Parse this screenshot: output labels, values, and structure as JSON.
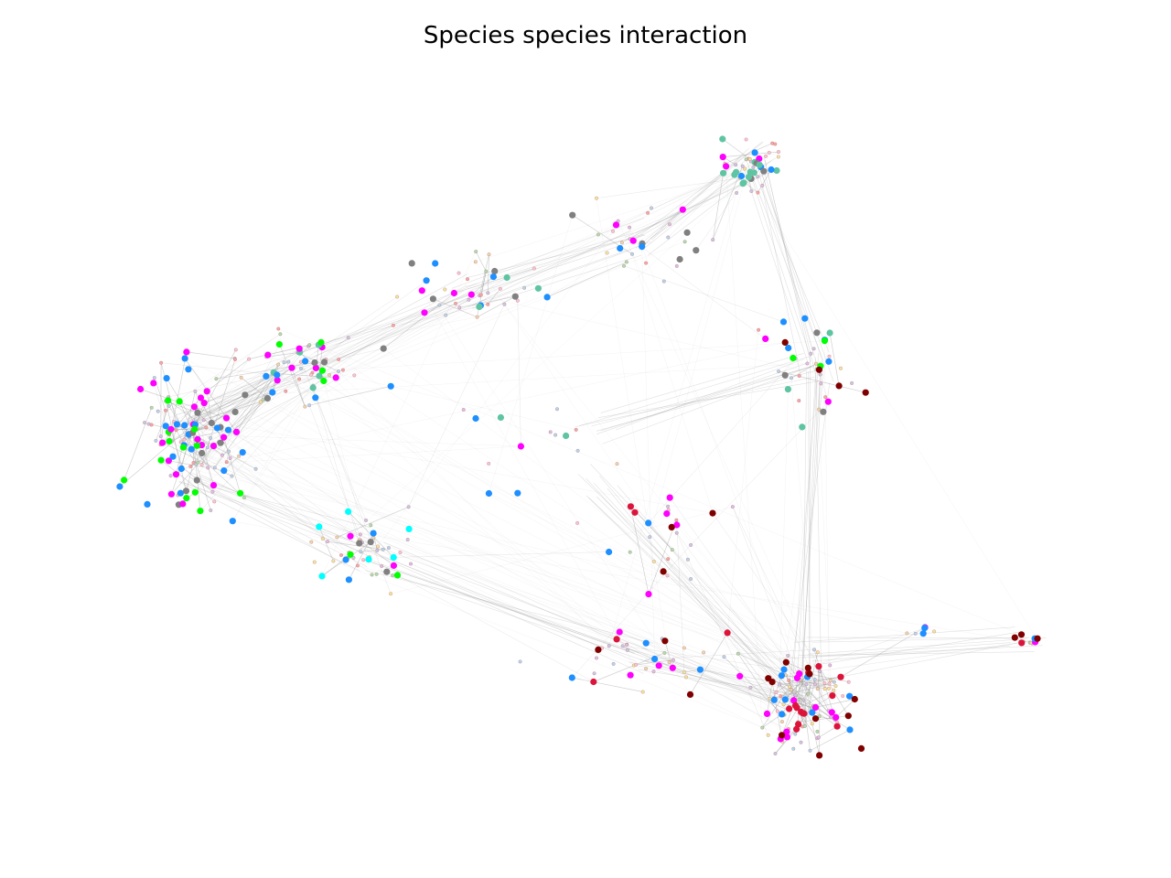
{
  "title": "Species species interaction",
  "node_colors": {
    "magenta": "#ff00ff",
    "blue": "#1e8fff",
    "gray": "#808080",
    "green": "#00ff00",
    "teal": "#5ec4a2",
    "maroon": "#800000",
    "crimson": "#dc143c",
    "cyan": "#00ffff",
    "edge": "#999999"
  }
}
